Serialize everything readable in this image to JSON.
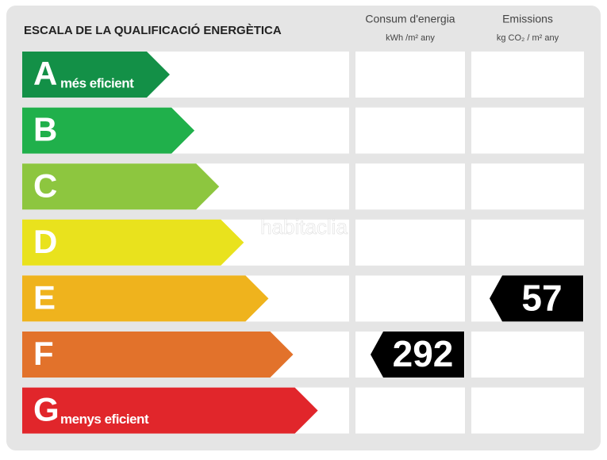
{
  "title": "ESCALA DE LA QUALIFICACIÓ ENERGÈTICA",
  "columns": [
    {
      "label": "Consum d'energia",
      "unit": "kWh /m² any"
    },
    {
      "label": "Emissions",
      "unit": "kg CO₂ / m² any"
    }
  ],
  "ratings": [
    {
      "letter": "A",
      "note": "més eficient",
      "color": "#139047"
    },
    {
      "letter": "B",
      "color": "#20b04b"
    },
    {
      "letter": "C",
      "color": "#8dc63f"
    },
    {
      "letter": "D",
      "color": "#e9e21d"
    },
    {
      "letter": "E",
      "color": "#efb31d"
    },
    {
      "letter": "F",
      "color": "#e2722b"
    },
    {
      "letter": "G",
      "note": "menys eficient",
      "color": "#e1262b"
    }
  ],
  "values": [
    {
      "column": 0,
      "rating": "F",
      "value": 292
    },
    {
      "column": 1,
      "rating": "E",
      "value": 57
    }
  ],
  "watermark": "habitaclia"
}
